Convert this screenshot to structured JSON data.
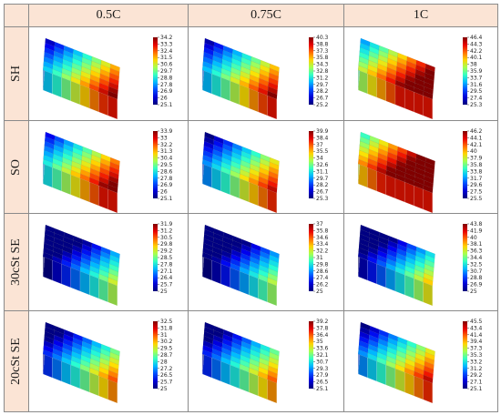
{
  "corner": "",
  "columns": [
    "0.5C",
    "0.75C",
    "1C"
  ],
  "rows": [
    "SH",
    "SO",
    "30cSt SE",
    "20cSt SE"
  ],
  "colorbar_colors": [
    "#800000",
    "#e80000",
    "#ff6a00",
    "#ffd200",
    "#a8ff4e",
    "#35ffc2",
    "#00b8ff",
    "#004cff",
    "#0000d6",
    "#00007a"
  ],
  "panels": [
    [
      {
        "ticks": [
          "34.2",
          "33.3",
          "32.4",
          "31.5",
          "30.6",
          "29.7",
          "28.8",
          "27.8",
          "26.9",
          "26",
          "25.1"
        ],
        "min": 25.1,
        "max": 34.2,
        "level": 0.62
      },
      {
        "ticks": [
          "40.3",
          "38.8",
          "37.3",
          "35.8",
          "34.3",
          "32.8",
          "31.2",
          "29.7",
          "28.2",
          "26.7",
          "25.2"
        ],
        "min": 25.2,
        "max": 40.3,
        "level": 0.6
      },
      {
        "ticks": [
          "46.4",
          "44.3",
          "42.2",
          "40.1",
          "38",
          "35.9",
          "33.7",
          "31.6",
          "29.5",
          "27.4",
          "25.3"
        ],
        "min": 25.3,
        "max": 46.4,
        "level": 0.82
      }
    ],
    [
      {
        "ticks": [
          "33.9",
          "33",
          "32.2",
          "31.3",
          "30.4",
          "29.5",
          "28.6",
          "27.8",
          "26.9",
          "26",
          "25.1"
        ],
        "min": 25.1,
        "max": 33.9,
        "level": 0.66
      },
      {
        "ticks": [
          "39.9",
          "38.4",
          "37",
          "35.5",
          "34",
          "32.6",
          "31.1",
          "29.7",
          "28.2",
          "26.7",
          "25.3"
        ],
        "min": 25.3,
        "max": 39.9,
        "level": 0.55
      },
      {
        "ticks": [
          "46.2",
          "44.1",
          "42.1",
          "40",
          "37.9",
          "35.8",
          "33.8",
          "31.7",
          "29.6",
          "27.5",
          "25.5"
        ],
        "min": 25.5,
        "max": 46.2,
        "level": 0.95
      }
    ],
    [
      {
        "ticks": [
          "31.9",
          "31.2",
          "30.5",
          "29.8",
          "29.2",
          "28.5",
          "27.8",
          "27.1",
          "26.4",
          "25.7",
          "25"
        ],
        "min": 25,
        "max": 31.9,
        "level": 0.28
      },
      {
        "ticks": [
          "37",
          "35.8",
          "34.6",
          "33.4",
          "32.2",
          "31",
          "29.8",
          "28.6",
          "27.4",
          "26.2",
          "25"
        ],
        "min": 25,
        "max": 37,
        "level": 0.26
      },
      {
        "ticks": [
          "43.8",
          "41.9",
          "40",
          "38.1",
          "36.3",
          "34.4",
          "32.5",
          "30.7",
          "28.8",
          "26.9",
          "25"
        ],
        "min": 25,
        "max": 43.8,
        "level": 0.34
      }
    ],
    [
      {
        "ticks": [
          "32.5",
          "31.8",
          "31",
          "30.2",
          "29.5",
          "28.7",
          "28",
          "27.2",
          "26.5",
          "25.7",
          "25"
        ],
        "min": 25,
        "max": 32.5,
        "level": 0.45
      },
      {
        "ticks": [
          "39.2",
          "37.8",
          "36.4",
          "35",
          "33.6",
          "32.1",
          "30.7",
          "29.3",
          "27.9",
          "26.5",
          "25.1"
        ],
        "min": 25.1,
        "max": 39.2,
        "level": 0.44
      },
      {
        "ticks": [
          "45.5",
          "43.4",
          "41.4",
          "39.4",
          "37.3",
          "35.3",
          "33.2",
          "31.2",
          "29.2",
          "27.1",
          "25.1"
        ],
        "min": 25.1,
        "max": 45.5,
        "level": 0.55
      }
    ]
  ]
}
